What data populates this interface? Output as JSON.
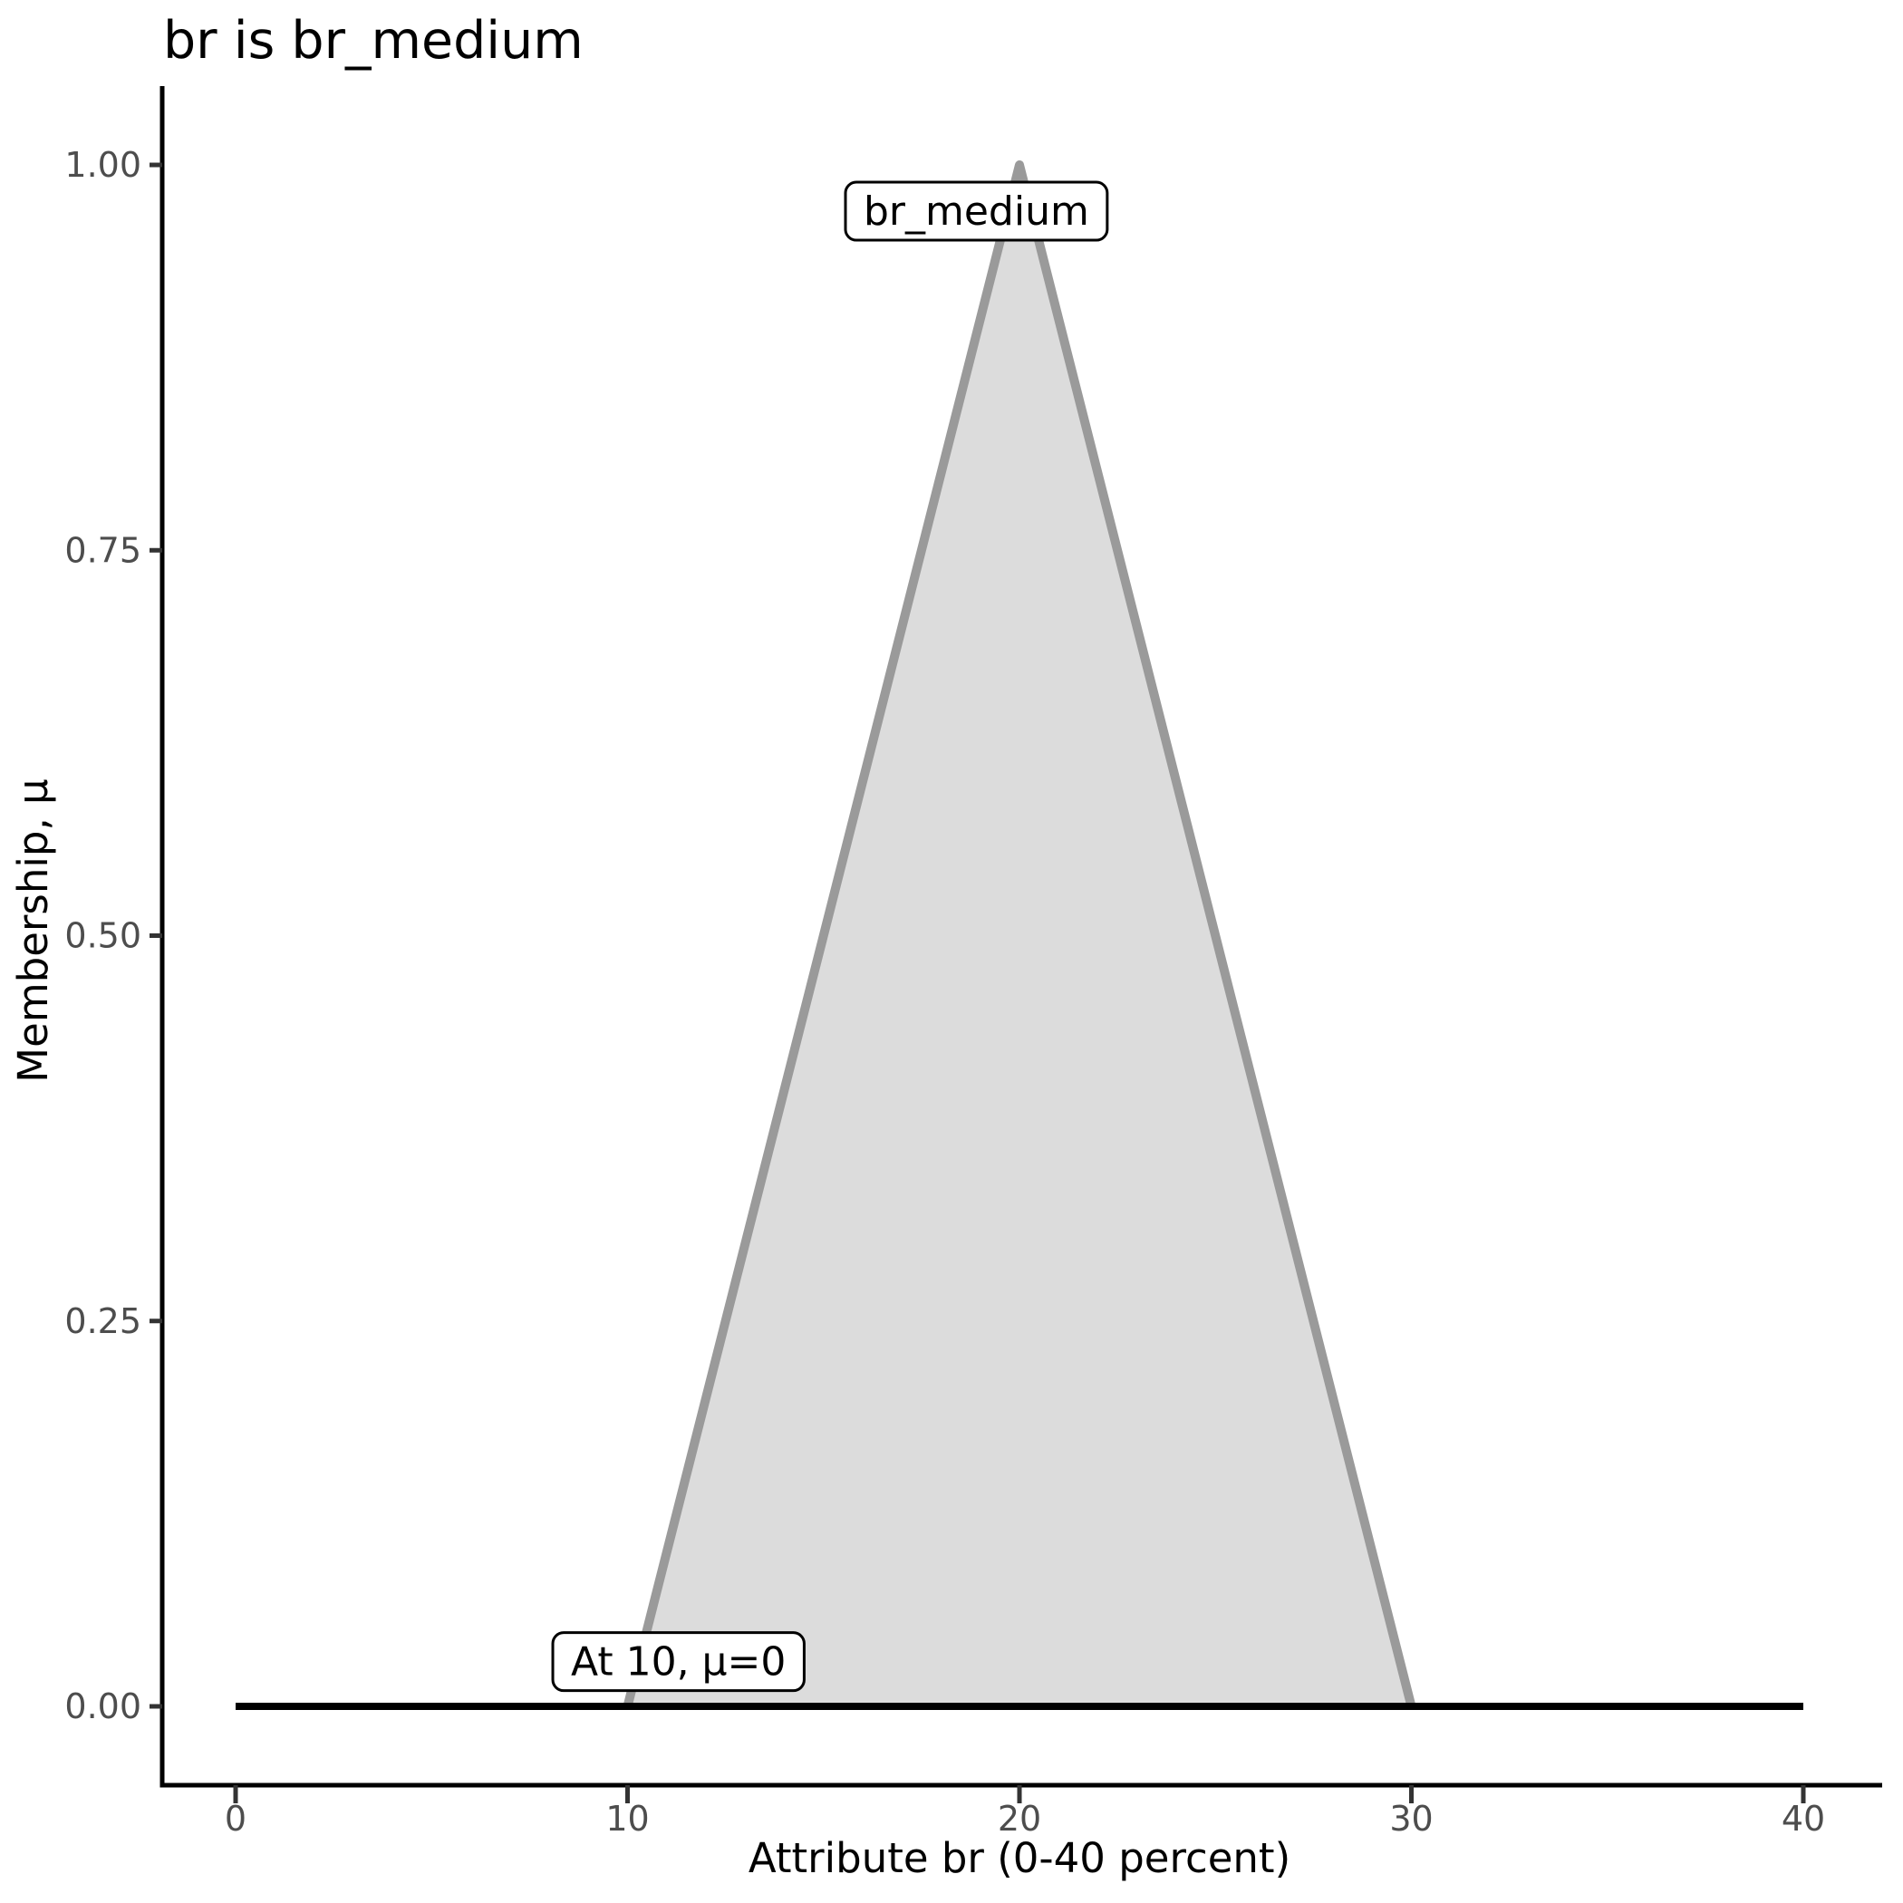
{
  "page": {
    "background": "#ffffff"
  },
  "chart_data": {
    "type": "area",
    "title": "br is br_medium",
    "xlabel": "Attribute br (0-40 percent)",
    "ylabel": "Membership, μ",
    "xlim": [
      0,
      40
    ],
    "ylim": [
      0,
      1
    ],
    "x_ticks": [
      "0",
      "10",
      "20",
      "30",
      "40"
    ],
    "y_ticks": [
      "0.00",
      "0.25",
      "0.50",
      "0.75",
      "1.00"
    ],
    "grid": false,
    "legend": "none",
    "series": [
      {
        "name": "br_medium",
        "x": [
          10,
          20,
          30
        ],
        "y": [
          0,
          1,
          0
        ],
        "fill": "#dcdcdc",
        "stroke": "#9a9a9a",
        "stroke_width": 10
      }
    ],
    "baseline": {
      "y": 0,
      "x_start": 0,
      "x_end": 40,
      "color": "#000000",
      "width": 8
    },
    "annotations": [
      {
        "label": "br_medium",
        "x": 18.9,
        "y": 0.97
      },
      {
        "label": "At 10, μ=0",
        "x": 11.3,
        "y": 0.029
      }
    ],
    "colors": {
      "axis_line": "#000000",
      "tick_mark": "#333333",
      "tick_label": "#4d4d4d",
      "text": "#000000",
      "annotation_bg": "#ffffff",
      "annotation_border": "#000000"
    }
  }
}
